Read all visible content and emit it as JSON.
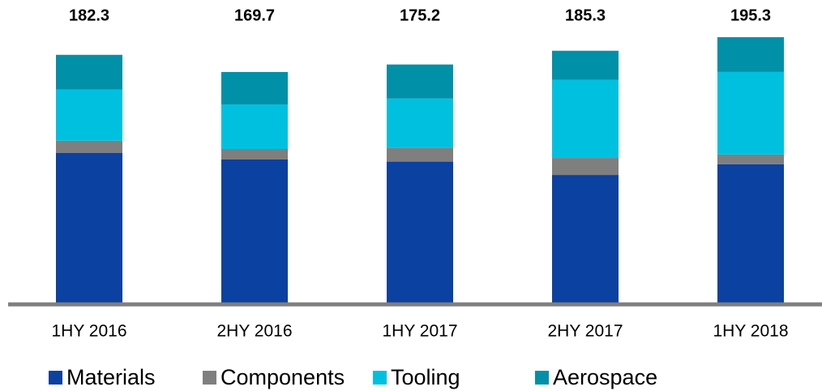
{
  "chart_data": {
    "type": "stacked_bar",
    "categories": [
      "1HY 2016",
      "2HY 2016",
      "1HY 2017",
      "2HY 2017",
      "1HY 2018"
    ],
    "totals": [
      182.3,
      169.7,
      175.2,
      185.3,
      195.3
    ],
    "series": [
      {
        "name": "Materials",
        "color": "#0b41a0",
        "values": [
          110.3,
          105.4,
          103.8,
          94.0,
          101.9
        ]
      },
      {
        "name": "Components",
        "color": "#7f7f7f",
        "values": [
          8.9,
          7.7,
          10.1,
          12.5,
          7.1
        ]
      },
      {
        "name": "Tooling",
        "color": "#00c0e0",
        "values": [
          37.5,
          32.7,
          36.3,
          57.4,
          60.7
        ]
      },
      {
        "name": "Aerospace",
        "color": "#0090a8",
        "values": [
          25.6,
          23.9,
          25.0,
          21.4,
          25.6
        ]
      }
    ]
  }
}
